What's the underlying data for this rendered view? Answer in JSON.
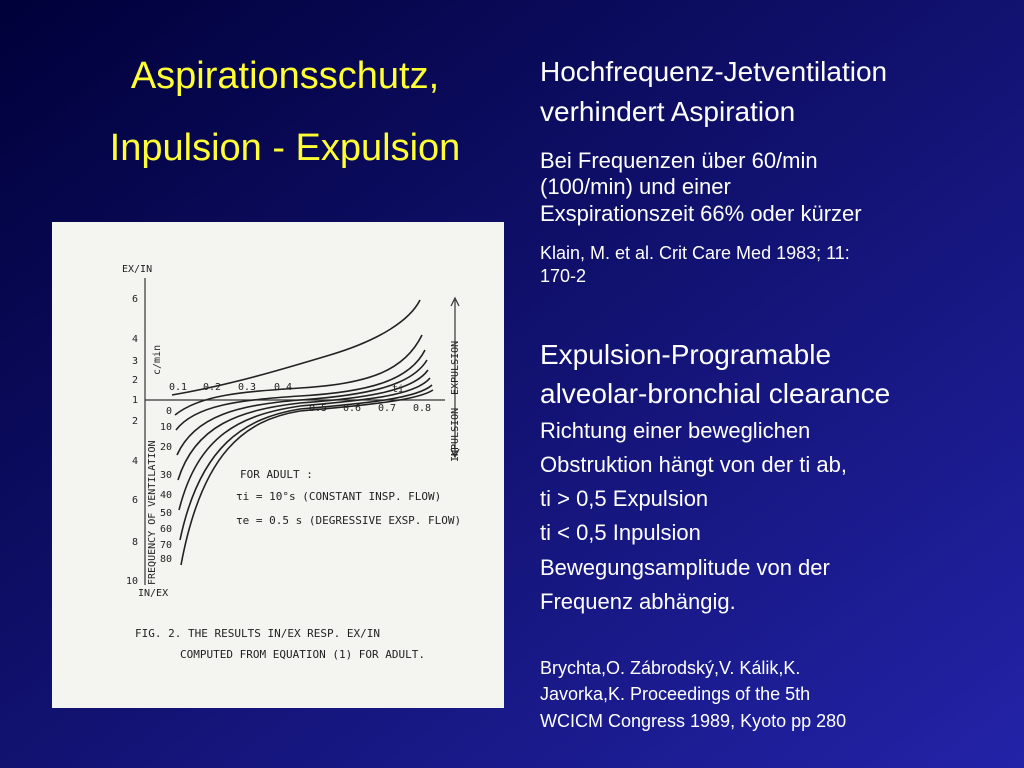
{
  "title": [
    "Aspirationsschutz,",
    "Inpulsion - Expulsion"
  ],
  "right": {
    "block1": [
      "Hochfrequenz-Jetventilation",
      "verhindert Aspiration"
    ],
    "block2": [
      "Bei Frequenzen über 60/min",
      "(100/min) und einer",
      "Exspirationszeit 66% oder kürzer"
    ],
    "citation1": [
      "Klain, M. et al. Crit Care Med 1983; 11:",
      "170-2"
    ],
    "block3": [
      "Expulsion-Programable",
      "alveolar-bronchial clearance"
    ],
    "block4": [
      "Richtung einer beweglichen",
      "Obstruktion hängt von der ti ab,",
      "ti > 0,5 Expulsion",
      "ti < 0,5 Inpulsion",
      "Bewegungsamplitude von der",
      "Frequenz abhängig."
    ],
    "citation2": [
      "Brychta,O. Zábrodský,V. Kálik,K.",
      "Javorka,K.  Proceedings of the 5th",
      "WCICM Congress 1989, Kyoto pp 280"
    ]
  },
  "figure": {
    "y_top_label": "EX/IN",
    "y_bottom_label": "IN/EX",
    "y_unit": "c/min",
    "y_axis_title": "FREQUENCY OF VENTILATION",
    "upper_ticks": [
      "6",
      "4",
      "3",
      "2",
      "1"
    ],
    "lower_ticks": [
      "2",
      "4",
      "6",
      "8",
      "10"
    ],
    "ti_ticks": [
      "0.1",
      "0.2",
      "0.3",
      "0.4",
      "0.5",
      "0.6",
      "0.7",
      "0.8"
    ],
    "ti_label": "ti",
    "curve_labels": [
      "0",
      "10",
      "20",
      "30",
      "40",
      "50",
      "60",
      "70",
      "80"
    ],
    "expulsion": "EXPULSION",
    "inpulsion": "INPULSION",
    "legend": [
      "FOR   ADULT :",
      "τi = 10°s  (CONSTANT INSP. FLOW)",
      "τe = 0.5 s  (DEGRESSIVE EXSP. FLOW)"
    ],
    "caption": [
      "FIG. 2. THE RESULTS  IN/EX  RESP.  EX/IN",
      "COMPUTED  FROM EQUATION (1)  FOR ADULT."
    ]
  }
}
